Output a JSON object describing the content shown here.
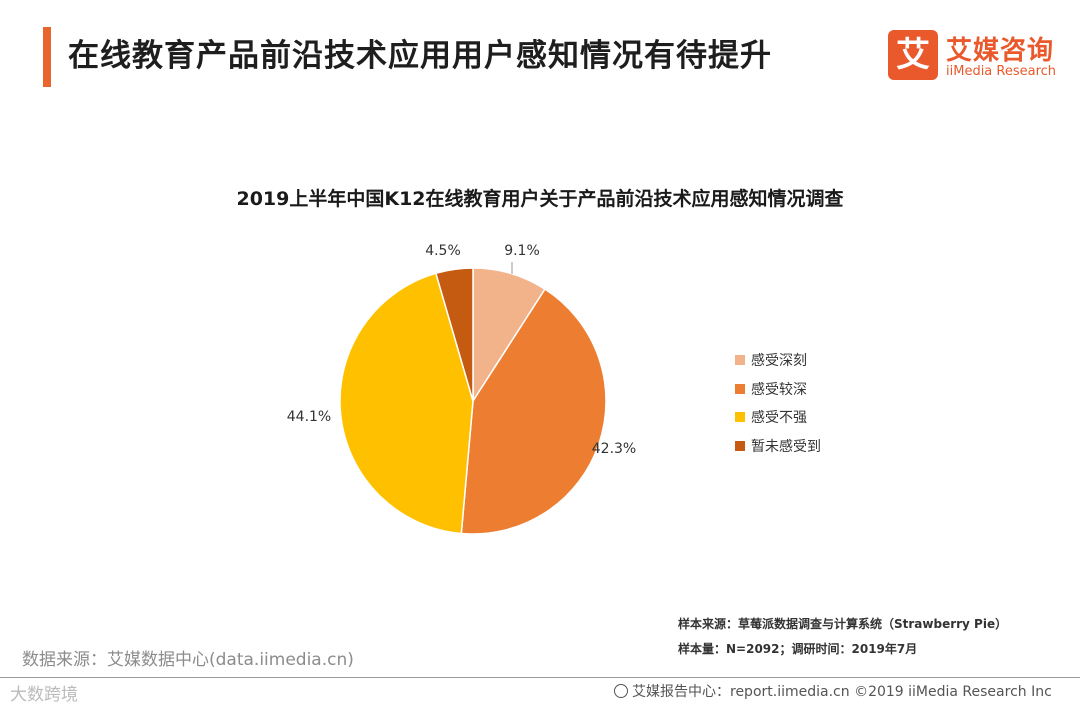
{
  "header": {
    "title": "在线教育产品前沿技术应用用户感知情况有待提升",
    "logo": {
      "mark": "艾",
      "name_cn": "艾媒咨询",
      "name_en": "iiMedia Research"
    }
  },
  "chart_data": {
    "type": "pie",
    "title": "2019上半年中国K12在线教育用户关于产品前沿技术应用感知情况调查",
    "categories": [
      "感受深刻",
      "感受较深",
      "感受不强",
      "暂未感受到"
    ],
    "values": [
      9.1,
      42.3,
      44.1,
      4.5
    ],
    "labels": [
      "9.1%",
      "42.3%",
      "44.1%",
      "4.5%"
    ],
    "colors": [
      "#f2b38a",
      "#ed7d31",
      "#ffc000",
      "#c55a11"
    ],
    "legend_position": "right"
  },
  "notes": {
    "sample_source": "样本来源：草莓派数据调查与计算系统（Strawberry  Pie）",
    "sample_size": "样本量：N=2092；调研时间：2019年7月"
  },
  "source": "数据来源：艾媒数据中心(data.iimedia.cn)",
  "footer": {
    "watermark": "大数跨境",
    "credit": "艾媒报告中心：report.iimedia.cn  ©2019  iiMedia Research  Inc"
  }
}
